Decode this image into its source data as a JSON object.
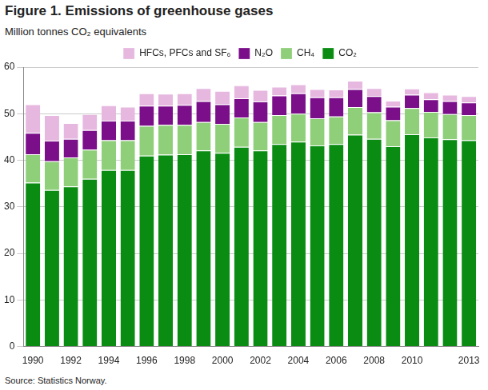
{
  "chart_data": {
    "type": "bar",
    "title": "Figure 1. Emissions of greenhouse gases",
    "y_label": "Million tonnes CO₂ equivalents",
    "annotations": [
      "Source: Statistics Norway."
    ],
    "categories": [
      "1990",
      null,
      "1992",
      null,
      "1994",
      null,
      "1996",
      null,
      "1998",
      null,
      "2000",
      null,
      "2002",
      null,
      "2004",
      null,
      "2006",
      null,
      "2008",
      null,
      "2010",
      null,
      null,
      "2013"
    ],
    "series": [
      {
        "name": "CO₂",
        "color": "#0a8c12",
        "values": [
          35.2,
          33.6,
          34.4,
          36.0,
          37.9,
          37.9,
          41.0,
          41.2,
          41.3,
          42.1,
          41.6,
          42.9,
          42.1,
          43.5,
          44.0,
          43.2,
          43.5,
          45.5,
          44.6,
          43.0,
          45.6,
          44.9,
          44.5,
          44.3
        ]
      },
      {
        "name": "CH₄",
        "color": "#8fcf7a",
        "values": [
          6.1,
          6.2,
          6.2,
          6.3,
          6.4,
          6.4,
          6.4,
          6.4,
          6.3,
          6.1,
          6.2,
          6.3,
          6.1,
          6.2,
          6.0,
          5.8,
          5.9,
          5.9,
          5.7,
          5.6,
          5.6,
          5.5,
          5.4,
          5.4
        ]
      },
      {
        "name": "N₂O",
        "color": "#7b0f8a",
        "values": [
          4.6,
          4.4,
          4.0,
          4.2,
          4.2,
          4.2,
          4.3,
          4.1,
          4.3,
          4.5,
          4.2,
          4.1,
          4.4,
          4.2,
          4.4,
          4.5,
          4.1,
          3.9,
          3.5,
          2.9,
          2.9,
          2.7,
          2.8,
          2.7
        ]
      },
      {
        "name": "HFCs, PFCs and SF₆",
        "color": "#e6b8e0",
        "values": [
          6.1,
          5.5,
          3.4,
          3.4,
          3.3,
          3.0,
          2.7,
          2.6,
          2.5,
          2.8,
          2.9,
          2.8,
          2.5,
          1.9,
          1.9,
          1.8,
          1.7,
          1.8,
          1.7,
          1.3,
          1.3,
          1.5,
          1.4,
          1.4
        ]
      }
    ],
    "ylim": [
      0,
      60
    ],
    "yticks": [
      0,
      10,
      20,
      30,
      40,
      50,
      60
    ],
    "stacked": true,
    "grid": true,
    "legend": "top"
  }
}
